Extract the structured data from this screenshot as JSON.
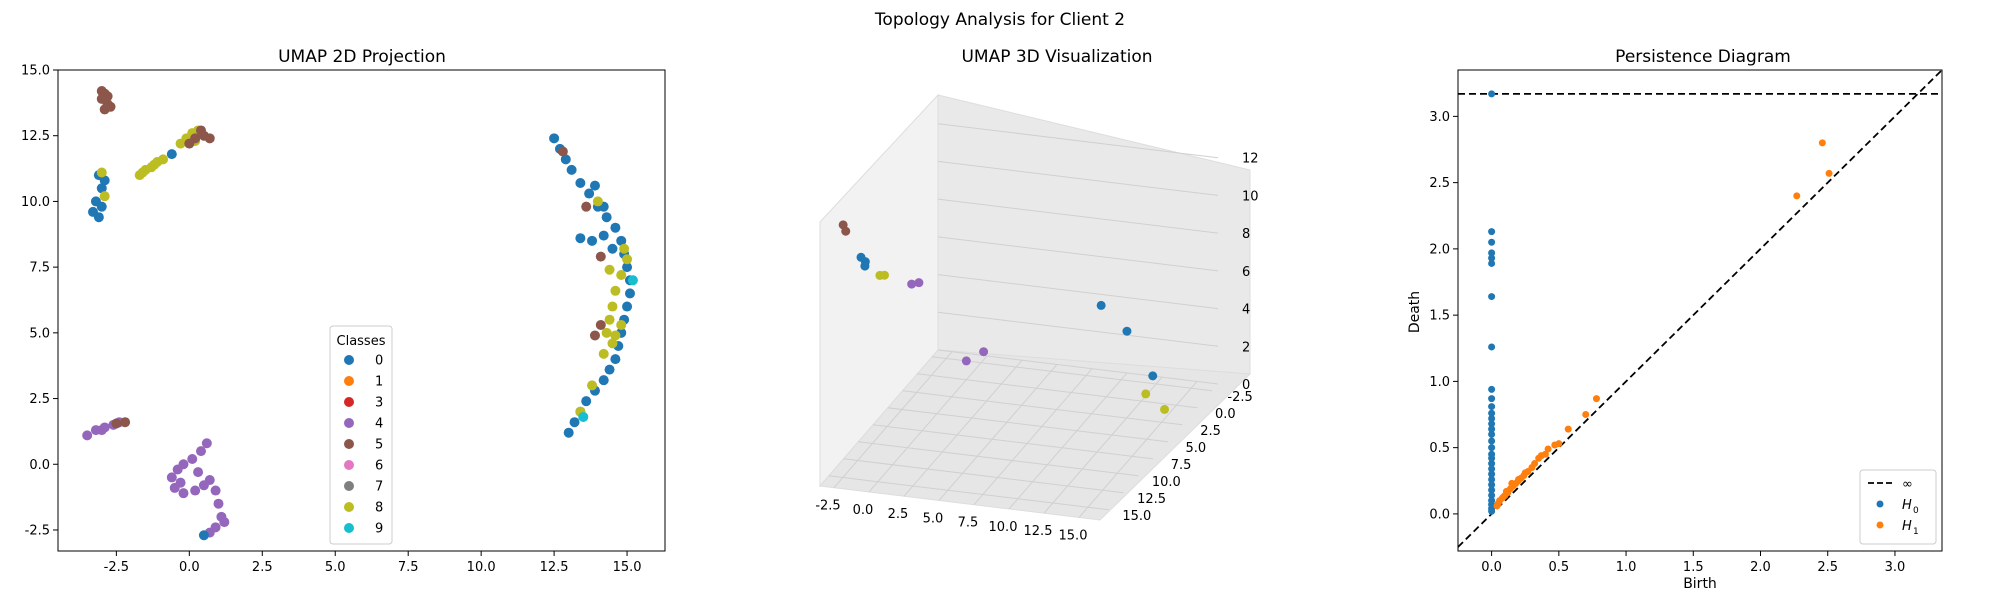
{
  "title": "Topology Analysis for Client 2",
  "colors": {
    "0": "#1f77b4",
    "1": "#ff7f0e",
    "3": "#d62728",
    "4": "#9467bd",
    "5": "#8c564b",
    "6": "#e377c2",
    "7": "#7f7f7f",
    "8": "#bcbd22",
    "9": "#17becf"
  },
  "chart_data": [
    {
      "type": "scatter",
      "title": "UMAP 2D Projection",
      "xlim": [
        -4.5,
        16.3
      ],
      "ylim": [
        -3.3,
        15.0
      ],
      "xticks": [
        "-2.5",
        "0.0",
        "2.5",
        "5.0",
        "7.5",
        "10.0",
        "12.5",
        "15.0"
      ],
      "yticks": [
        "-2.5",
        "0.0",
        "2.5",
        "5.0",
        "7.5",
        "10.0",
        "12.5",
        "15.0"
      ],
      "legend": {
        "title": "Classes",
        "placement": "lower-center",
        "entries": [
          "0",
          "1",
          "3",
          "4",
          "5",
          "6",
          "7",
          "8",
          "9"
        ]
      },
      "clusters": [
        {
          "class": "5",
          "points": [
            [
              -2.9,
              14.1
            ],
            [
              -3.0,
              13.9
            ],
            [
              -2.8,
              13.7
            ],
            [
              -2.9,
              13.5
            ],
            [
              -2.7,
              13.6
            ],
            [
              -3.0,
              14.2
            ],
            [
              -2.8,
              14.0
            ]
          ]
        },
        {
          "class": "0",
          "points": [
            [
              -3.1,
              11.0
            ],
            [
              -3.0,
              10.5
            ],
            [
              -3.2,
              10.0
            ],
            [
              -3.3,
              9.6
            ],
            [
              -3.1,
              9.4
            ],
            [
              -2.9,
              10.8
            ],
            [
              -3.0,
              9.8
            ]
          ]
        },
        {
          "class": "8",
          "points": [
            [
              -3.0,
              11.1
            ],
            [
              -2.9,
              10.2
            ],
            [
              -1.7,
              11.0
            ],
            [
              -1.5,
              11.2
            ],
            [
              -1.3,
              11.3
            ],
            [
              -1.1,
              11.5
            ],
            [
              -0.9,
              11.6
            ],
            [
              -1.6,
              11.1
            ],
            [
              -1.2,
              11.4
            ]
          ]
        },
        {
          "class": "0",
          "points": [
            [
              -0.6,
              11.8
            ]
          ]
        },
        {
          "class": "8",
          "points": [
            [
              -0.3,
              12.2
            ],
            [
              -0.1,
              12.4
            ],
            [
              0.1,
              12.6
            ],
            [
              0.3,
              12.7
            ],
            [
              0.2,
              12.3
            ]
          ]
        },
        {
          "class": "5",
          "points": [
            [
              0.0,
              12.2
            ],
            [
              0.2,
              12.4
            ],
            [
              0.5,
              12.5
            ],
            [
              0.7,
              12.4
            ],
            [
              0.4,
              12.7
            ]
          ]
        },
        {
          "class": "4",
          "points": [
            [
              -3.5,
              1.1
            ],
            [
              -3.2,
              1.3
            ],
            [
              -2.9,
              1.4
            ],
            [
              -2.6,
              1.5
            ],
            [
              -2.4,
              1.6
            ],
            [
              -3.0,
              1.3
            ]
          ]
        },
        {
          "class": "5",
          "points": [
            [
              -2.2,
              1.6
            ],
            [
              -2.5,
              1.55
            ]
          ]
        },
        {
          "class": "4",
          "points": [
            [
              0.6,
              0.8
            ],
            [
              0.4,
              0.5
            ],
            [
              0.1,
              0.2
            ],
            [
              -0.2,
              0.0
            ],
            [
              -0.4,
              -0.2
            ],
            [
              -0.6,
              -0.5
            ],
            [
              -0.5,
              -0.9
            ],
            [
              -0.2,
              -1.1
            ],
            [
              0.2,
              -1.0
            ],
            [
              0.5,
              -0.8
            ],
            [
              0.7,
              -0.6
            ],
            [
              0.9,
              -1.0
            ],
            [
              1.0,
              -1.5
            ],
            [
              1.1,
              -2.0
            ],
            [
              0.9,
              -2.4
            ],
            [
              0.7,
              -2.6
            ],
            [
              1.2,
              -2.2
            ],
            [
              -0.3,
              -0.7
            ],
            [
              0.3,
              -0.3
            ]
          ]
        },
        {
          "class": "0",
          "points": [
            [
              0.5,
              -2.7
            ]
          ]
        },
        {
          "class": "0",
          "points": [
            [
              12.5,
              12.4
            ],
            [
              12.7,
              12.0
            ],
            [
              12.9,
              11.6
            ],
            [
              13.1,
              11.2
            ],
            [
              13.4,
              10.7
            ],
            [
              13.7,
              10.3
            ],
            [
              14.0,
              9.8
            ],
            [
              14.3,
              9.4
            ],
            [
              14.6,
              9.0
            ],
            [
              14.8,
              8.5
            ],
            [
              14.9,
              8.0
            ],
            [
              15.0,
              7.5
            ],
            [
              15.1,
              7.0
            ],
            [
              15.1,
              6.5
            ],
            [
              15.0,
              6.0
            ],
            [
              14.9,
              5.5
            ],
            [
              14.8,
              5.0
            ],
            [
              14.7,
              4.5
            ],
            [
              14.6,
              4.0
            ],
            [
              14.4,
              3.6
            ],
            [
              14.2,
              3.2
            ],
            [
              13.9,
              2.8
            ],
            [
              13.6,
              2.4
            ],
            [
              13.4,
              2.0
            ],
            [
              13.2,
              1.6
            ],
            [
              13.0,
              1.2
            ],
            [
              13.4,
              8.6
            ],
            [
              13.8,
              8.5
            ],
            [
              14.2,
              8.7
            ],
            [
              14.5,
              8.2
            ],
            [
              14.2,
              9.8
            ],
            [
              13.9,
              10.6
            ]
          ]
        },
        {
          "class": "8",
          "points": [
            [
              14.9,
              8.2
            ],
            [
              15.0,
              7.8
            ],
            [
              14.8,
              7.2
            ],
            [
              14.6,
              6.6
            ],
            [
              14.5,
              6.0
            ],
            [
              14.4,
              5.5
            ],
            [
              14.3,
              5.0
            ],
            [
              14.5,
              4.6
            ],
            [
              14.2,
              4.2
            ],
            [
              14.8,
              5.3
            ],
            [
              14.6,
              4.9
            ],
            [
              13.8,
              3.0
            ],
            [
              13.4,
              2.0
            ],
            [
              14.4,
              7.4
            ],
            [
              14.0,
              10.0
            ]
          ]
        },
        {
          "class": "5",
          "points": [
            [
              12.8,
              11.9
            ],
            [
              13.6,
              9.8
            ],
            [
              14.1,
              7.9
            ],
            [
              13.9,
              4.9
            ],
            [
              14.1,
              5.3
            ]
          ]
        },
        {
          "class": "9",
          "points": [
            [
              15.2,
              7.0
            ],
            [
              13.5,
              1.8
            ]
          ]
        }
      ]
    },
    {
      "type": "scatter",
      "title": "UMAP 3D Visualization",
      "xticks": [
        "-2.5",
        "0.0",
        "2.5",
        "5.0",
        "7.5",
        "10.0",
        "12.5",
        "15.0"
      ],
      "yticks": [
        "-2.5",
        "0.0",
        "2.5",
        "5.0",
        "7.5",
        "10.0",
        "12.5",
        "15.0"
      ],
      "zticks": [
        "0",
        "2",
        "4",
        "6",
        "8",
        "10",
        "12"
      ],
      "clusters": [
        {
          "class": "5",
          "points": [
            [
              -2.9,
              14.0,
              13.0
            ],
            [
              -2.8,
              13.8,
              12.6
            ]
          ]
        },
        {
          "class": "0",
          "points": [
            [
              -3.1,
              10.5,
              10.0
            ],
            [
              -3.0,
              10.0,
              9.6
            ],
            [
              -3.2,
              9.6,
              9.2
            ]
          ]
        },
        {
          "class": "8",
          "points": [
            [
              -1.5,
              11.1,
              9.4
            ],
            [
              -1.0,
              11.5,
              9.6
            ]
          ]
        },
        {
          "class": "4",
          "points": [
            [
              -3.4,
              1.2,
              5.2
            ],
            [
              -2.8,
              1.4,
              5.4
            ],
            [
              0.0,
              0.0,
              1.0
            ],
            [
              0.6,
              -1.5,
              1.0
            ]
          ]
        },
        {
          "class": "0",
          "points": [
            [
              13.0,
              8.0,
              8.0
            ],
            [
              14.0,
              6.0,
              6.0
            ],
            [
              15.0,
              4.0,
              3.0
            ]
          ]
        },
        {
          "class": "8",
          "points": [
            [
              14.5,
              4.0,
              2.0
            ],
            [
              15.0,
              2.0,
              0.5
            ]
          ]
        }
      ]
    },
    {
      "type": "scatter",
      "title": "Persistence Diagram",
      "xlabel": "Birth",
      "ylabel": "Death",
      "xlim": [
        -0.25,
        3.35
      ],
      "ylim": [
        -0.28,
        3.35
      ],
      "xticks": [
        0.0,
        0.5,
        1.0,
        1.5,
        2.0,
        2.5,
        3.0
      ],
      "yticks": [
        0.0,
        0.5,
        1.0,
        1.5,
        2.0,
        2.5,
        3.0
      ],
      "infinity_line": 3.17,
      "legend": {
        "placement": "lower-right",
        "entries": [
          "∞",
          "H",
          "H"
        ],
        "subscripts": [
          "",
          "0",
          "1"
        ]
      },
      "series": [
        {
          "name": "H0",
          "color": "#1f77b4",
          "points": [
            [
              0,
              3.17
            ],
            [
              0,
              2.13
            ],
            [
              0,
              2.05
            ],
            [
              0,
              1.97
            ],
            [
              0,
              1.93
            ],
            [
              0,
              1.89
            ],
            [
              0,
              1.64
            ],
            [
              0,
              1.26
            ],
            [
              0,
              0.94
            ],
            [
              0,
              0.87
            ],
            [
              0,
              0.81
            ],
            [
              0,
              0.76
            ],
            [
              0,
              0.72
            ],
            [
              0,
              0.68
            ],
            [
              0,
              0.64
            ],
            [
              0,
              0.6
            ],
            [
              0,
              0.55
            ],
            [
              0,
              0.5
            ],
            [
              0,
              0.45
            ],
            [
              0,
              0.42
            ],
            [
              0,
              0.38
            ],
            [
              0,
              0.34
            ],
            [
              0,
              0.3
            ],
            [
              0,
              0.26
            ],
            [
              0,
              0.22
            ],
            [
              0,
              0.18
            ],
            [
              0,
              0.14
            ],
            [
              0,
              0.1
            ],
            [
              0,
              0.07
            ],
            [
              0,
              0.04
            ],
            [
              0,
              0.02
            ]
          ]
        },
        {
          "name": "H1",
          "color": "#ff7f0e",
          "points": [
            [
              2.46,
              2.8
            ],
            [
              2.51,
              2.57
            ],
            [
              2.27,
              2.4
            ],
            [
              0.78,
              0.87
            ],
            [
              0.7,
              0.75
            ],
            [
              0.57,
              0.64
            ],
            [
              0.47,
              0.52
            ],
            [
              0.42,
              0.49
            ],
            [
              0.37,
              0.44
            ],
            [
              0.32,
              0.38
            ],
            [
              0.3,
              0.35
            ],
            [
              0.27,
              0.32
            ],
            [
              0.24,
              0.29
            ],
            [
              0.22,
              0.27
            ],
            [
              0.2,
              0.25
            ],
            [
              0.18,
              0.23
            ],
            [
              0.16,
              0.21
            ],
            [
              0.14,
              0.19
            ],
            [
              0.12,
              0.16
            ],
            [
              0.1,
              0.14
            ],
            [
              0.08,
              0.12
            ],
            [
              0.06,
              0.1
            ],
            [
              0.05,
              0.08
            ],
            [
              0.04,
              0.06
            ],
            [
              0.15,
              0.23
            ],
            [
              0.25,
              0.31
            ],
            [
              0.35,
              0.42
            ],
            [
              0.11,
              0.17
            ],
            [
              0.2,
              0.26
            ],
            [
              0.09,
              0.13
            ],
            [
              0.5,
              0.53
            ],
            [
              0.4,
              0.45
            ]
          ]
        }
      ]
    }
  ]
}
